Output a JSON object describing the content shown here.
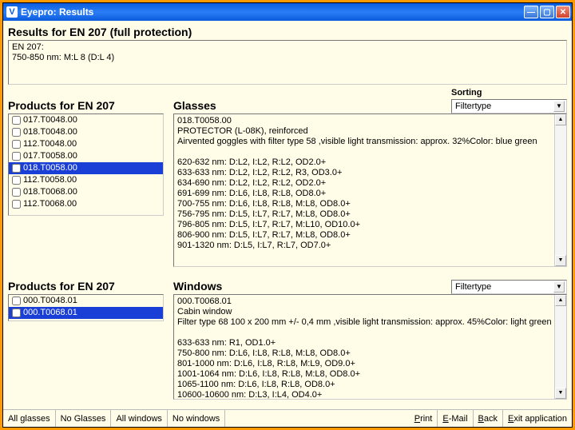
{
  "window": {
    "icon_letter": "V",
    "title": "Eyepro: Results"
  },
  "results": {
    "heading": "Results for EN 207 (full protection)",
    "line1": "EN 207:",
    "line2": "750-850 nm: M:L 8 (D:L 4)"
  },
  "sorting": {
    "label": "Sorting",
    "value": "Filtertype"
  },
  "products_glasses": {
    "heading": "Products for EN 207",
    "items": [
      {
        "label": "017.T0048.00",
        "selected": false
      },
      {
        "label": "018.T0048.00",
        "selected": false
      },
      {
        "label": "112.T0048.00",
        "selected": false
      },
      {
        "label": "017.T0058.00",
        "selected": false
      },
      {
        "label": "018.T0058.00",
        "selected": true
      },
      {
        "label": "112.T0058.00",
        "selected": false
      },
      {
        "label": "018.T0068.00",
        "selected": false
      },
      {
        "label": "112.T0068.00",
        "selected": false
      }
    ]
  },
  "glasses": {
    "heading": "Glasses",
    "lines": [
      "018.T0058.00",
      "PROTECTOR (L-08K), reinforced",
      "Airvented goggles with filter type 58 ,visible light transmission: approx. 32%Color: blue green",
      "",
      "620-632 nm: D:L2, I:L2, R:L2, OD2.0+",
      "633-633 nm: D:L2, I:L2, R:L2, R3, OD3.0+",
      "634-690 nm: D:L2, I:L2, R:L2, OD2.0+",
      "691-699 nm: D:L6, I:L8, R:L8, OD8.0+",
      "700-755 nm: D:L6, I:L8, R:L8, M:L8, OD8.0+",
      "756-795 nm: D:L5, I:L7, R:L7, M:L8, OD8.0+",
      "796-805 nm: D:L5, I:L7, R:L7, M:L10, OD10.0+",
      "806-900 nm: D:L5, I:L7, R:L7, M:L8, OD8.0+",
      "901-1320 nm: D:L5, I:L7, R:L7, OD7.0+"
    ]
  },
  "products_windows": {
    "heading": "Products for EN 207",
    "items": [
      {
        "label": "000.T0048.01",
        "selected": false
      },
      {
        "label": "000.T0068.01",
        "selected": true
      }
    ]
  },
  "windows": {
    "heading": "Windows",
    "sort_value": "Filtertype",
    "lines": [
      "000.T0068.01",
      "Cabin window",
      "Filter type 68 100 x 200 mm +/- 0,4 mm ,visible light transmission: approx. 45%Color: light green",
      "",
      "633-633 nm: R1, OD1.0+",
      "750-800 nm: D:L6, I:L8, R:L8, M:L8, OD8.0+",
      "801-1000 nm: D:L6, I:L8, R:L8, M:L9, OD9.0+",
      "1001-1064 nm: D:L6, I:L8, R:L8, M:L8, OD8.0+",
      "1065-1100 nm: D:L6, I:L8, R:L8, OD8.0+",
      "10600-10600 nm: D:L3, I:L4, OD4.0+"
    ]
  },
  "buttons": {
    "all_glasses": "All glasses",
    "no_glasses": "No Glasses",
    "all_windows": "All windows",
    "no_windows": "No windows",
    "print": "Print",
    "email": "E-Mail",
    "back": "Back",
    "exit": "Exit application"
  }
}
